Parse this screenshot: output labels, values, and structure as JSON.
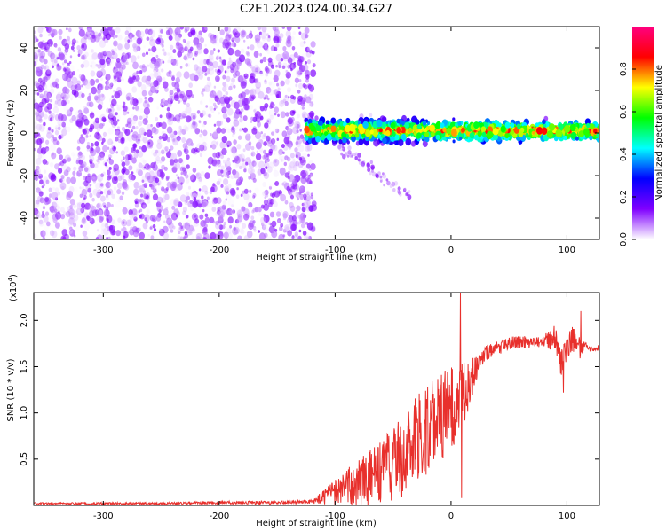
{
  "title": "C2E1.2023.024.00.34.G27",
  "colors": {
    "trace": "#e8302c",
    "axis": "#000000"
  },
  "chart_data": [
    {
      "type": "heatmap",
      "xlabel": "Height of straight line (km)",
      "ylabel": "Frequency (Hz)",
      "xlim": [
        -360,
        128
      ],
      "ylim": [
        -50,
        50
      ],
      "x_ticks": [
        -300,
        -200,
        -100,
        0,
        100
      ],
      "x_tick_labels": [
        "-300",
        "-200",
        "-100",
        "0",
        "100"
      ],
      "y_ticks": [
        -40,
        -20,
        0,
        20,
        40
      ],
      "y_tick_labels": [
        "-40",
        "-20",
        "0",
        "20",
        "40"
      ],
      "colorbar": {
        "label": "Normalized spectral amplitude",
        "range": [
          0,
          1
        ],
        "ticks": [
          0.0,
          0.2,
          0.4,
          0.6,
          0.8
        ],
        "tick_labels": [
          "0.0",
          "0.2",
          "0.4",
          "0.6",
          "0.8"
        ],
        "colormap": [
          "#ffffff",
          "#8000ff",
          "#0000ff",
          "#00ffff",
          "#00ff00",
          "#ffff00",
          "#ff0000",
          "#ff0080"
        ]
      },
      "regions": [
        {
          "name": "noise",
          "x_range": [
            -360,
            -118
          ],
          "freq_range": [
            -50,
            50
          ],
          "amplitude_range": [
            0.0,
            0.15
          ]
        },
        {
          "name": "signal",
          "x_range": [
            -125,
            128
          ],
          "freq_center": 1,
          "freq_spread": 3,
          "amplitude_range": [
            0.3,
            0.9
          ]
        },
        {
          "name": "tail",
          "x_range": [
            -100,
            -35
          ],
          "freq_range": [
            -30,
            -5
          ],
          "amplitude_range": [
            0.05,
            0.15
          ]
        }
      ]
    },
    {
      "type": "line",
      "xlabel": "Height of straight line (km)",
      "ylabel": "SNR (10 * v/v)",
      "y_scale_note": "(x10",
      "y_scale_exp": "4",
      "y_scale_close": ")",
      "xlim": [
        -360,
        128
      ],
      "ylim": [
        0,
        2.3
      ],
      "x_ticks": [
        -300,
        -200,
        -100,
        0,
        100
      ],
      "x_tick_labels": [
        "-300",
        "-200",
        "-100",
        "0",
        "100"
      ],
      "y_ticks": [
        0.5,
        1.0,
        1.5,
        2.0
      ],
      "y_tick_labels": [
        "0.5",
        "1.0",
        "1.5",
        "2.0"
      ],
      "series": [
        {
          "points": [
            [
              -360,
              0.02
            ],
            [
              -300,
              0.02
            ],
            [
              -250,
              0.02
            ],
            [
              -200,
              0.03
            ],
            [
              -150,
              0.03
            ],
            [
              -120,
              0.04
            ],
            [
              -110,
              0.08
            ],
            [
              -100,
              0.15
            ],
            [
              -90,
              0.2
            ],
            [
              -80,
              0.25
            ],
            [
              -70,
              0.3
            ],
            [
              -60,
              0.35
            ],
            [
              -50,
              0.45
            ],
            [
              -40,
              0.55
            ],
            [
              -30,
              0.7
            ],
            [
              -20,
              0.85
            ],
            [
              -10,
              0.95
            ],
            [
              0,
              1.05
            ],
            [
              5,
              1.1
            ],
            [
              10,
              1.2
            ],
            [
              15,
              1.3
            ],
            [
              20,
              1.45
            ],
            [
              25,
              1.6
            ],
            [
              30,
              1.65
            ],
            [
              40,
              1.7
            ],
            [
              50,
              1.75
            ],
            [
              60,
              1.77
            ],
            [
              70,
              1.75
            ],
            [
              80,
              1.78
            ],
            [
              90,
              1.8
            ],
            [
              95,
              1.55
            ],
            [
              100,
              1.72
            ],
            [
              105,
              1.8
            ],
            [
              110,
              1.7
            ],
            [
              115,
              1.72
            ],
            [
              120,
              1.7
            ],
            [
              128,
              1.7
            ]
          ],
          "noise": [
            [
              -360,
              0.01
            ],
            [
              -120,
              0.02
            ],
            [
              -110,
              0.08
            ],
            [
              -100,
              0.15
            ],
            [
              -80,
              0.25
            ],
            [
              -60,
              0.35
            ],
            [
              -40,
              0.45
            ],
            [
              -20,
              0.5
            ],
            [
              0,
              0.45
            ],
            [
              10,
              0.35
            ],
            [
              20,
              0.2
            ],
            [
              30,
              0.08
            ],
            [
              80,
              0.06
            ],
            [
              90,
              0.15
            ],
            [
              110,
              0.15
            ],
            [
              115,
              0.04
            ],
            [
              128,
              0.03
            ]
          ],
          "spikes": [
            {
              "x": 8,
              "y": 2.3
            },
            {
              "x": 9,
              "y": 0.08
            },
            {
              "x": 97,
              "y": 1.22
            },
            {
              "x": 112,
              "y": 1.32
            },
            {
              "x": 112,
              "y": 2.1
            }
          ]
        }
      ]
    }
  ]
}
